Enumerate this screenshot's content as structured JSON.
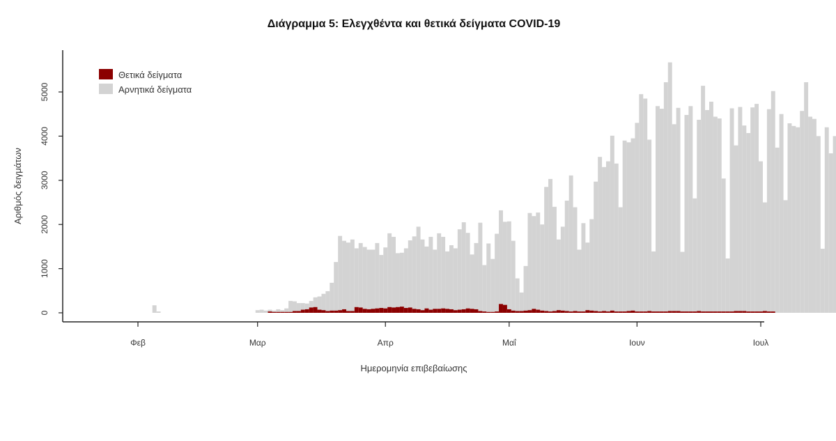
{
  "chart_data": {
    "type": "bar",
    "stacked": true,
    "title": "Διάγραμμα 5: Ελεγχθέντα και θετικά δείγματα COVID-19",
    "xlabel": "Ημερομηνία επιβεβαίωσης",
    "ylabel": "Αριθμός δειγμάτων",
    "x_ticks": [
      {
        "label": "Φεβ",
        "date": "2020-02-01"
      },
      {
        "label": "Μαρ",
        "date": "2020-03-01"
      },
      {
        "label": "Απρ",
        "date": "2020-04-01"
      },
      {
        "label": "Μαΐ",
        "date": "2020-05-01"
      },
      {
        "label": "Ιουν",
        "date": "2020-06-01"
      },
      {
        "label": "Ιουλ",
        "date": "2020-07-01"
      }
    ],
    "y_ticks": [
      0,
      1000,
      2000,
      3000,
      4000,
      5000
    ],
    "ylim": [
      0,
      5800
    ],
    "xlim": [
      "2020-01-15",
      "2020-07-01"
    ],
    "legend_position": "top-left",
    "colors": {
      "positive": "#8b0000",
      "negative": "#d3d3d3",
      "axis": "#222222"
    },
    "series": [
      {
        "name": "Θετικά δείγματα",
        "color": "#8b0000",
        "start_date": "2020-03-04",
        "values": [
          30,
          20,
          20,
          20,
          20,
          20,
          40,
          40,
          70,
          80,
          120,
          130,
          70,
          60,
          40,
          50,
          50,
          60,
          80,
          40,
          40,
          130,
          120,
          90,
          80,
          90,
          100,
          110,
          100,
          130,
          120,
          130,
          140,
          110,
          120,
          90,
          80,
          60,
          100,
          70,
          90,
          90,
          100,
          90,
          80,
          60,
          70,
          80,
          100,
          90,
          80,
          40,
          30,
          20,
          20,
          30,
          200,
          180,
          80,
          50,
          40,
          40,
          50,
          60,
          90,
          70,
          50,
          40,
          30,
          40,
          60,
          50,
          40,
          30,
          40,
          30,
          30,
          60,
          50,
          40,
          30,
          40,
          30,
          50,
          30,
          30,
          30,
          40,
          50,
          30,
          30,
          30,
          40,
          30,
          30,
          30,
          30,
          40,
          40,
          40,
          30,
          30,
          30,
          30,
          40,
          30,
          30,
          30,
          30,
          30,
          30,
          30,
          30,
          40,
          40,
          40,
          30,
          30,
          30,
          30,
          40,
          30,
          30,
          0
        ]
      },
      {
        "name": "Αρνητικά δείγματα",
        "color": "#d3d3d3",
        "start_date": "2020-02-02",
        "values": [
          0,
          0,
          0,
          170,
          30,
          0,
          0,
          0,
          0,
          0,
          0,
          0,
          0,
          0,
          0,
          0,
          0,
          0,
          0,
          0,
          0,
          0,
          0,
          0,
          0,
          0,
          0,
          0,
          60,
          70,
          50,
          40,
          30,
          60,
          40,
          80,
          250,
          220,
          180,
          150,
          130,
          150,
          220,
          300,
          370,
          450,
          630,
          1100,
          1680,
          1550,
          1550,
          1620,
          1330,
          1460,
          1400,
          1350,
          1340,
          1480,
          1200,
          1380,
          1670,
          1600,
          1220,
          1220,
          1350,
          1520,
          1640,
          1870,
          1600,
          1400,
          1650,
          1340,
          1710,
          1620,
          1300,
          1450,
          1400,
          1820,
          1970,
          1710,
          1230,
          1500,
          2000,
          1050,
          1550,
          1200,
          1760,
          2120,
          1880,
          1990,
          1580,
          740,
          420,
          1010,
          2200,
          2100,
          2200,
          1950,
          2810,
          3000,
          2360,
          1600,
          1900,
          2500,
          3080,
          2350,
          1400,
          2000,
          1530,
          2070,
          2930,
          3500,
          3260,
          3400,
          3960,
          3350,
          2360,
          3870,
          3820,
          3900,
          4270,
          4920,
          4820,
          3880,
          1360,
          4650,
          4590,
          5190,
          5630,
          4230,
          4600,
          1350,
          4450,
          4650,
          2560,
          4330,
          5110,
          4560,
          4750,
          4410,
          4370,
          3010,
          1200,
          4600,
          3750,
          4620,
          4200,
          4040,
          4620,
          4700,
          3400,
          2460,
          4580,
          4990,
          3740,
          4500,
          2550,
          4290,
          4230,
          4200,
          4570,
          5220,
          4440,
          4390,
          4000,
          1450,
          4200,
          3610,
          4000,
          0,
          0
        ]
      }
    ]
  }
}
